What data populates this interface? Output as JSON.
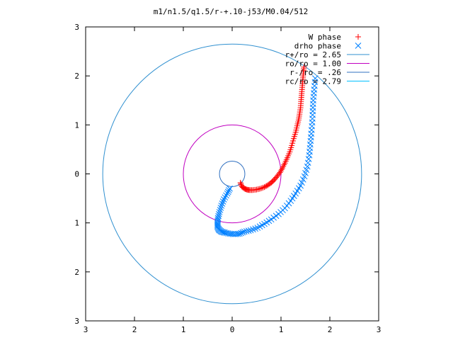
{
  "chart_data": {
    "type": "scatter",
    "title": "m1/n1.5/q1.5/r-+.10-j53/M0.04/512",
    "xlim": [
      -3,
      3
    ],
    "ylim": [
      -3,
      3
    ],
    "x_ticks": [
      -3,
      -2,
      -1,
      0,
      1,
      2,
      3
    ],
    "y_ticks": [
      -3,
      -2,
      -1,
      0,
      1,
      2,
      3
    ],
    "x_tick_labels": [
      "3",
      "2",
      "1",
      "0",
      "1",
      "2",
      "3"
    ],
    "y_tick_labels": [
      "3",
      "2",
      "1",
      "0",
      "1",
      "2",
      "3"
    ],
    "grid": false,
    "legend_position": "top-right",
    "legend": [
      {
        "label": "W phase",
        "marker": "+",
        "color": "#ff0000"
      },
      {
        "label": "drho phase",
        "marker": "x",
        "color": "#0080ff"
      },
      {
        "label": "r+/ro = 2.65",
        "marker": "line",
        "color": "#3090d0"
      },
      {
        "label": "ro/ro = 1.00",
        "marker": "line",
        "color": "#c000c0"
      },
      {
        "label": "r-/ro = .26",
        "marker": "line",
        "color": "#3070c0"
      },
      {
        "label": "rc/ro = 2.79",
        "marker": "line",
        "color": "#00c0ff"
      }
    ],
    "circles": [
      {
        "name": "r+/ro = 2.65",
        "radius": 2.65,
        "color": "#3090d0"
      },
      {
        "name": "ro/ro = 1.00",
        "radius": 1.0,
        "color": "#c000c0"
      },
      {
        "name": "r-/ro = .26",
        "radius": 0.26,
        "color": "#3070c0"
      }
    ],
    "series": [
      {
        "name": "W phase",
        "marker": "+",
        "color": "#ff0000",
        "x": [
          0.17,
          0.2,
          0.25,
          0.3,
          0.35,
          0.42,
          0.5,
          0.58,
          0.66,
          0.73,
          0.8,
          0.86,
          0.92,
          0.98,
          1.03,
          1.08,
          1.13,
          1.18,
          1.22,
          1.26,
          1.3,
          1.33,
          1.36,
          1.38,
          1.4,
          1.41,
          1.42,
          1.43,
          1.44,
          1.45,
          1.46,
          1.47
        ],
        "y": [
          -0.18,
          -0.26,
          -0.3,
          -0.32,
          -0.33,
          -0.33,
          -0.32,
          -0.3,
          -0.27,
          -0.23,
          -0.18,
          -0.12,
          -0.05,
          0.03,
          0.12,
          0.22,
          0.33,
          0.45,
          0.58,
          0.72,
          0.85,
          0.98,
          1.1,
          1.22,
          1.35,
          1.48,
          1.6,
          1.72,
          1.84,
          1.96,
          2.08,
          2.18
        ]
      },
      {
        "name": "drho phase",
        "marker": "x",
        "color": "#0080ff",
        "x": [
          -0.05,
          -0.1,
          -0.17,
          -0.22,
          -0.26,
          -0.29,
          -0.3,
          -0.3,
          -0.27,
          -0.22,
          -0.15,
          -0.05,
          0.05,
          0.15,
          0.25,
          0.38,
          0.52,
          0.66,
          0.8,
          0.95,
          1.08,
          1.2,
          1.3,
          1.4,
          1.48,
          1.54,
          1.58,
          1.6,
          1.62,
          1.64,
          1.65,
          1.66,
          1.68,
          1.7
        ],
        "y": [
          -0.3,
          -0.4,
          -0.52,
          -0.65,
          -0.78,
          -0.9,
          -1.0,
          -1.08,
          -1.14,
          -1.18,
          -1.2,
          -1.22,
          -1.23,
          -1.22,
          -1.18,
          -1.15,
          -1.1,
          -1.02,
          -0.93,
          -0.82,
          -0.7,
          -0.55,
          -0.4,
          -0.24,
          -0.05,
          0.15,
          0.38,
          0.6,
          0.82,
          1.05,
          1.28,
          1.5,
          1.72,
          1.95
        ]
      }
    ]
  }
}
